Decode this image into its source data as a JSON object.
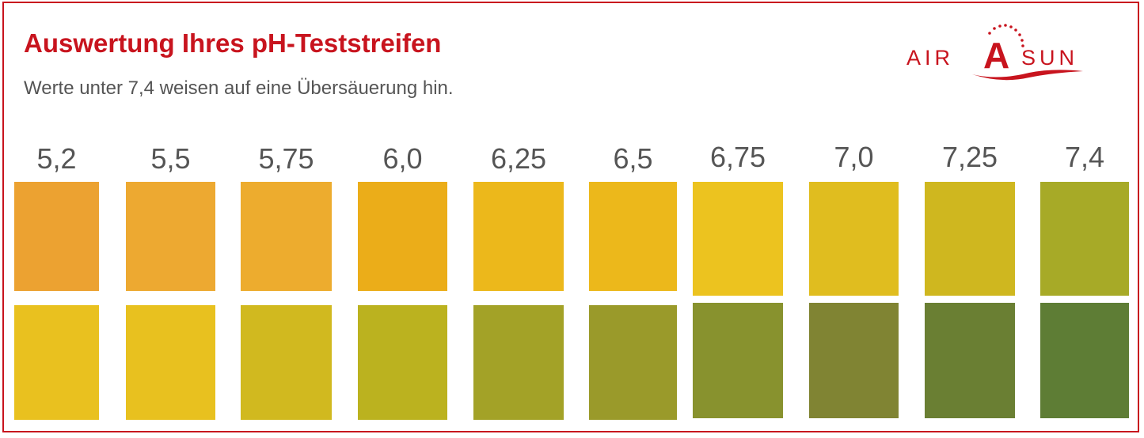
{
  "header": {
    "title": "Auswertung Ihres pH-Teststreifen",
    "subtitle": "Werte unter 7,4 weisen auf eine Übersäuerung hin."
  },
  "logo": {
    "text_left": "AIR",
    "text_center": "A",
    "text_right": "SUN",
    "color": "#c8141e"
  },
  "accent_color": "#c8141e",
  "scale": [
    {
      "ph": "5,2",
      "top_color": "#eca231",
      "bottom_color": "#e9c11f"
    },
    {
      "ph": "5,5",
      "top_color": "#eda931",
      "bottom_color": "#e8c11f"
    },
    {
      "ph": "5,75",
      "top_color": "#edac2e",
      "bottom_color": "#d1b91f"
    },
    {
      "ph": "6,0",
      "top_color": "#ebad19",
      "bottom_color": "#bbb21f"
    },
    {
      "ph": "6,25",
      "top_color": "#ecb81b",
      "bottom_color": "#a3a227"
    },
    {
      "ph": "6,5",
      "top_color": "#ecb81b",
      "bottom_color": "#9a9a2a"
    },
    {
      "ph": "6,75",
      "top_color": "#ecc31f",
      "bottom_color": "#88922e"
    },
    {
      "ph": "7,0",
      "top_color": "#e0bd1f",
      "bottom_color": "#808433"
    },
    {
      "ph": "7,25",
      "top_color": "#cfb71f",
      "bottom_color": "#6a7f33"
    },
    {
      "ph": "7,4",
      "top_color": "#a7aa27",
      "bottom_color": "#5e7d35"
    }
  ]
}
